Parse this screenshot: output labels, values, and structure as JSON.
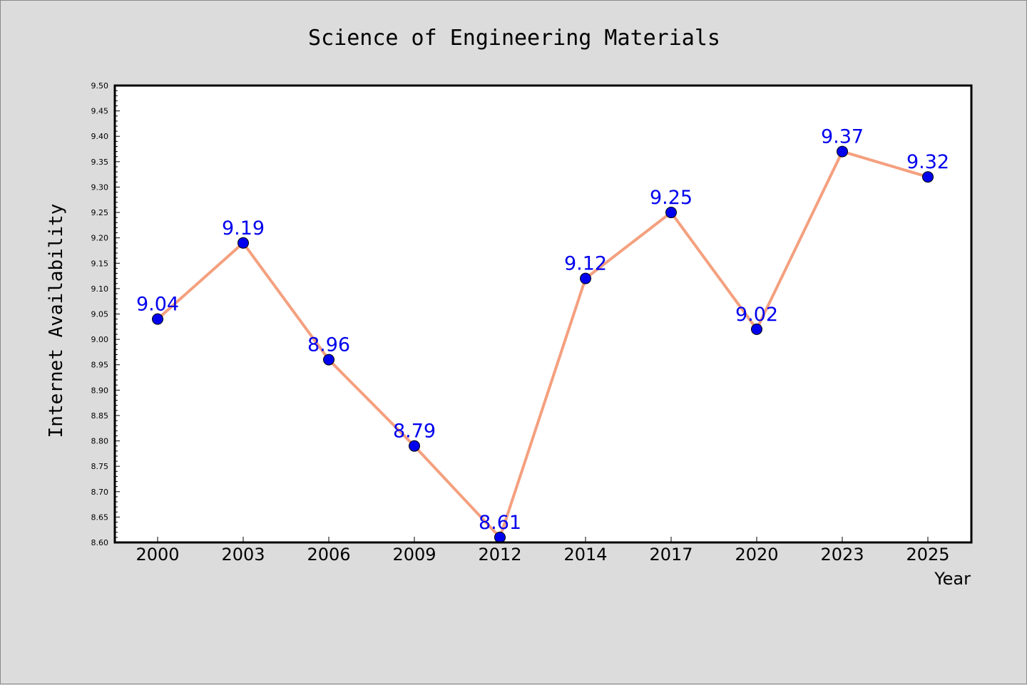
{
  "chart_data": {
    "type": "line",
    "title": "Science of Engineering Materials",
    "xlabel": "Year",
    "ylabel": "Internet Availability",
    "categories": [
      "2000",
      "2003",
      "2006",
      "2009",
      "2012",
      "2014",
      "2017",
      "2020",
      "2023",
      "2025"
    ],
    "series": [
      {
        "values": [
          9.04,
          9.19,
          8.96,
          8.79,
          8.61,
          9.12,
          9.25,
          9.02,
          9.37,
          9.32
        ],
        "line_color": "#f4a07f",
        "marker_color": "#0000ee",
        "label_color": "#0000ee"
      }
    ],
    "data_labels": [
      "9.04",
      "9.19",
      "8.96",
      "8.79",
      "8.61",
      "9.12",
      "9.25",
      "9.02",
      "9.37",
      "9.32"
    ],
    "ylim": [
      8.6,
      9.5
    ],
    "yticks": [
      "8.60",
      "8.65",
      "8.70",
      "8.75",
      "8.80",
      "8.85",
      "8.90",
      "8.95",
      "9.00",
      "9.05",
      "9.10",
      "9.15",
      "9.20",
      "9.25",
      "9.30",
      "9.35",
      "9.40",
      "9.45",
      "9.50"
    ],
    "grid": false,
    "legend": "none",
    "background_color": "#dcdcdc",
    "plot_background_color": "#ffffff"
  }
}
